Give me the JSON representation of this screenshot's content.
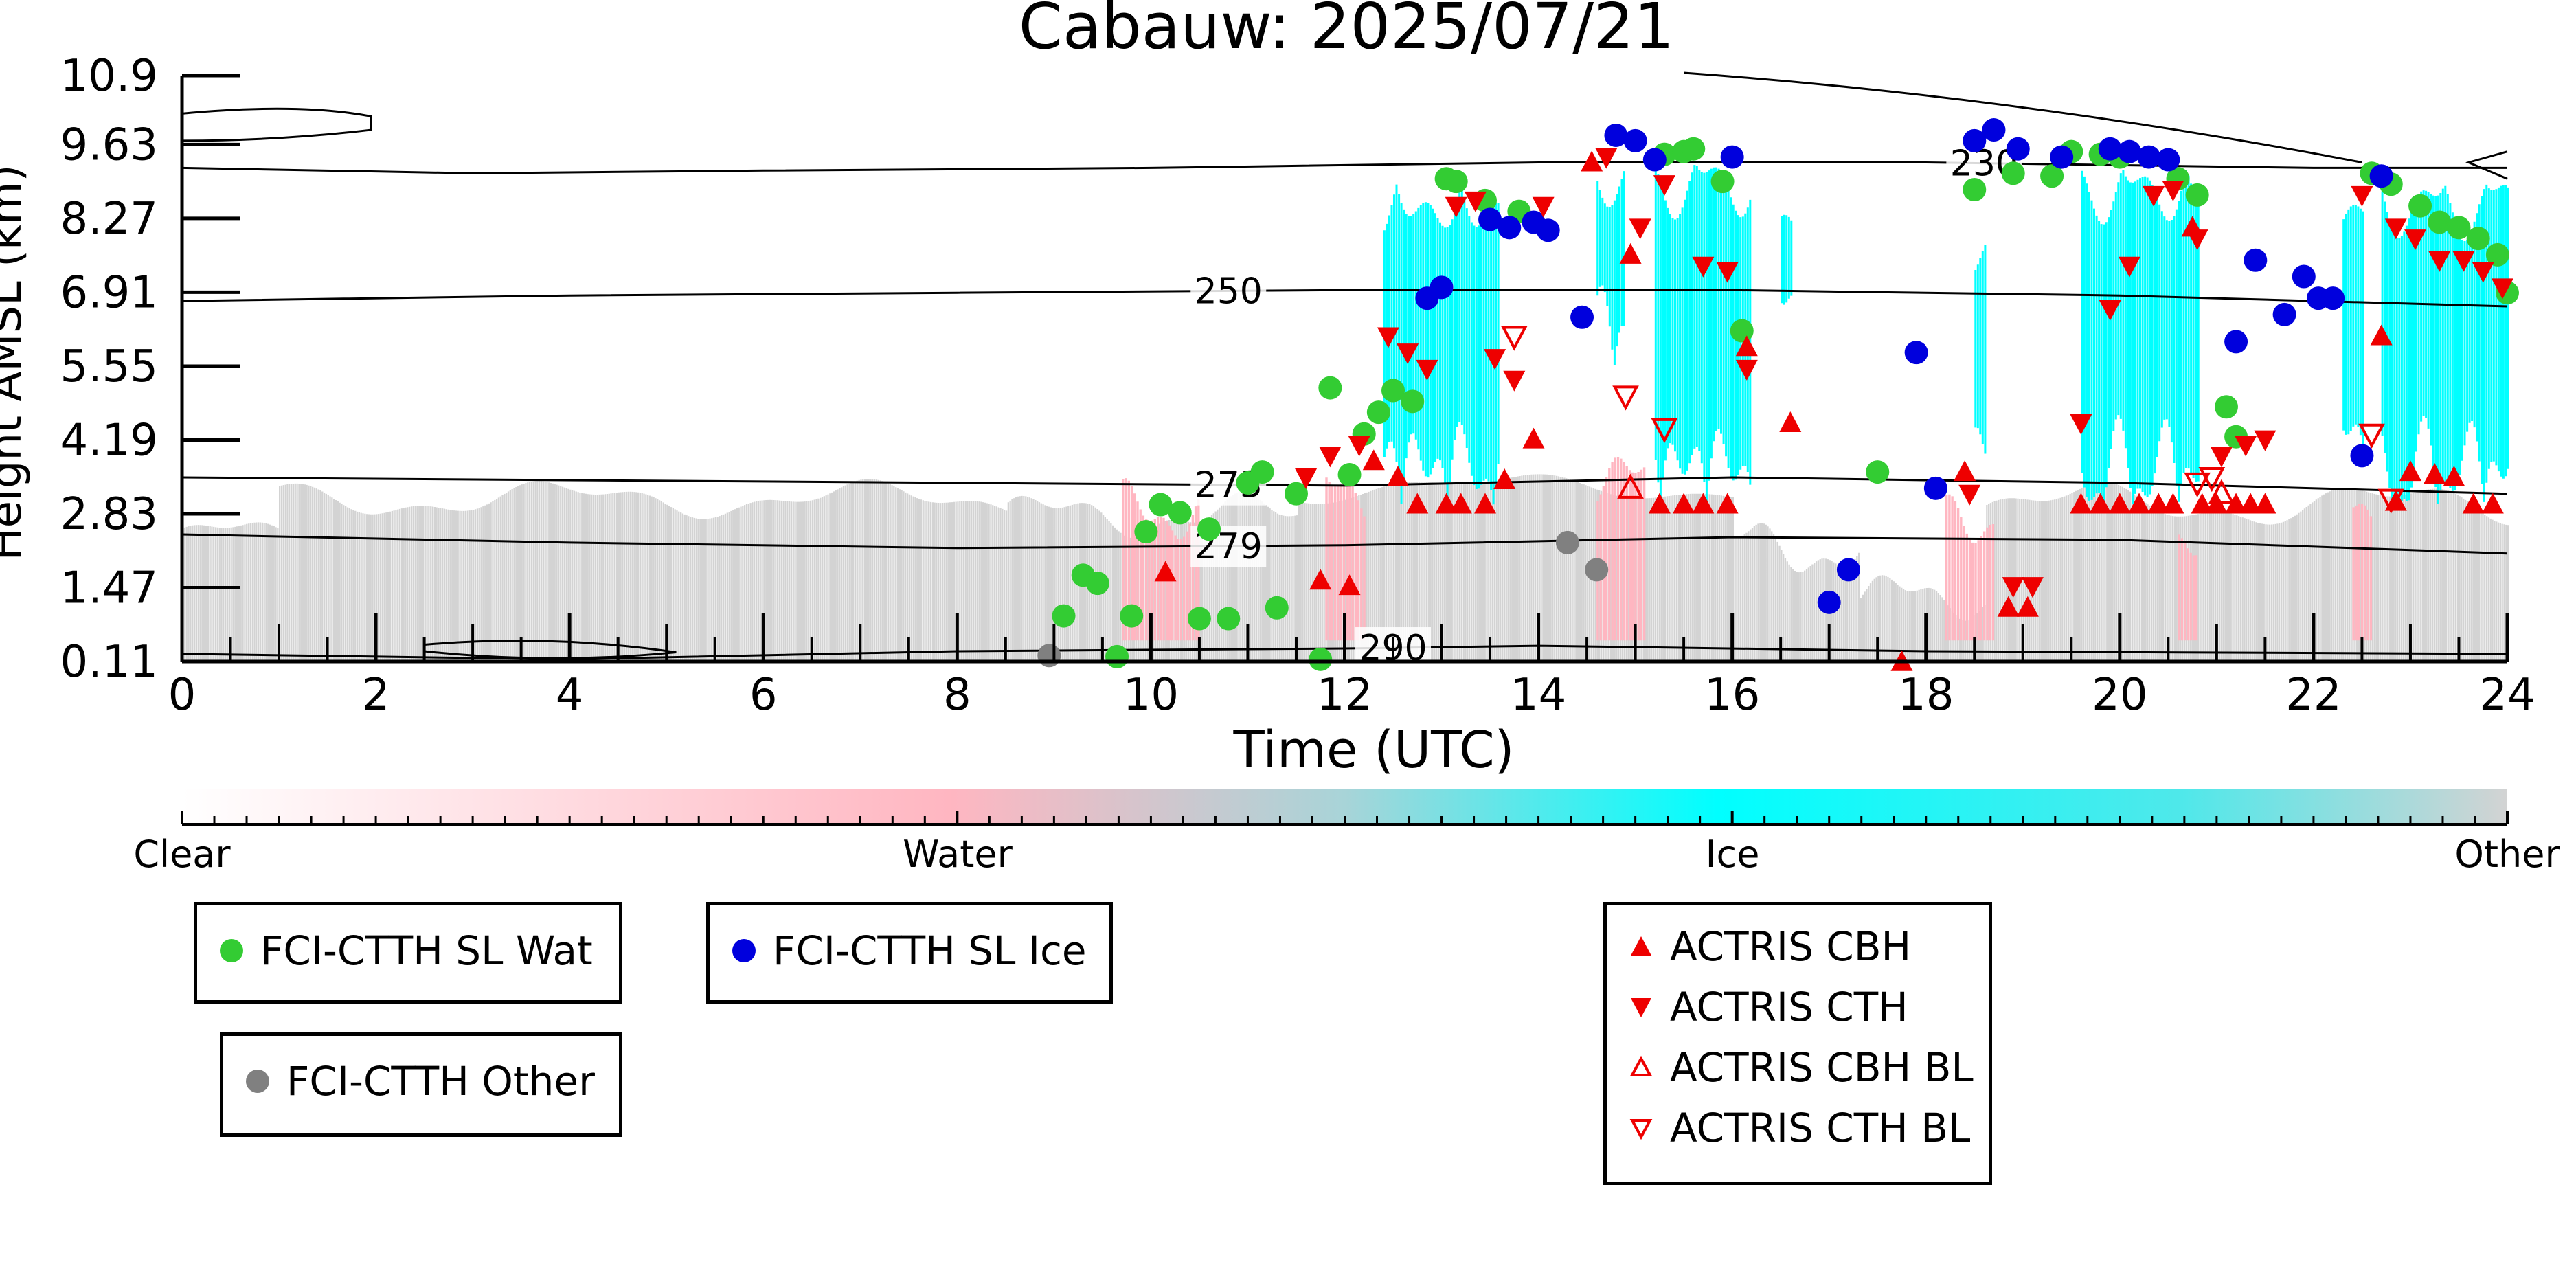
{
  "chart_data": {
    "type": "scatter",
    "title": "Cabauw: 2025/07/21",
    "xlabel": "Time (UTC)",
    "ylabel": "Height AMSL (km)",
    "xlim": [
      0,
      24
    ],
    "ylim": [
      0.11,
      10.9
    ],
    "xticks": [
      "0",
      "2",
      "4",
      "6",
      "8",
      "10",
      "12",
      "14",
      "16",
      "18",
      "20",
      "22",
      "24"
    ],
    "yticks": [
      "0.11",
      "1.47",
      "2.83",
      "4.19",
      "5.55",
      "6.91",
      "8.27",
      "9.63",
      "10.9"
    ],
    "colorbar": {
      "labels": [
        "Clear",
        "Water",
        "Ice",
        "Other"
      ],
      "colors": [
        "#ffffff",
        "#ffb6c1",
        "#00ffff",
        "#d3d3d3"
      ]
    },
    "contours": [
      {
        "label": "230",
        "label_x": 18.6,
        "points": [
          [
            0,
            9.2
          ],
          [
            3,
            9.1
          ],
          [
            6,
            9.15
          ],
          [
            10,
            9.2
          ],
          [
            14,
            9.3
          ],
          [
            18,
            9.3
          ],
          [
            22,
            9.2
          ],
          [
            24,
            9.2
          ]
        ]
      },
      {
        "label": "250",
        "label_x": 10.8,
        "points": [
          [
            0,
            6.75
          ],
          [
            4,
            6.85
          ],
          [
            8,
            6.9
          ],
          [
            12,
            6.95
          ],
          [
            16,
            6.95
          ],
          [
            20,
            6.85
          ],
          [
            24,
            6.65
          ]
        ]
      },
      {
        "label": "273",
        "label_x": 10.8,
        "points": [
          [
            0,
            3.5
          ],
          [
            4,
            3.45
          ],
          [
            8,
            3.4
          ],
          [
            12,
            3.35
          ],
          [
            16,
            3.5
          ],
          [
            20,
            3.4
          ],
          [
            24,
            3.2
          ]
        ]
      },
      {
        "label": "279",
        "label_x": 10.8,
        "points": [
          [
            0,
            2.45
          ],
          [
            4,
            2.3
          ],
          [
            8,
            2.2
          ],
          [
            12,
            2.25
          ],
          [
            16,
            2.4
          ],
          [
            20,
            2.35
          ],
          [
            24,
            2.1
          ]
        ]
      },
      {
        "label": "290",
        "label_x": 12.5,
        "points": [
          [
            0,
            0.25
          ],
          [
            4,
            0.15
          ],
          [
            8,
            0.3
          ],
          [
            12,
            0.35
          ],
          [
            14,
            0.4
          ],
          [
            18,
            0.3
          ],
          [
            24,
            0.25
          ]
        ]
      }
    ],
    "series": [
      {
        "name": "FCI-CTTH SL Wat",
        "marker": "circle",
        "color": "#33cc33",
        "x": [
          9.1,
          9.3,
          9.45,
          9.65,
          9.8,
          9.95,
          10.1,
          10.3,
          10.5,
          10.6,
          10.8,
          11.0,
          11.15,
          11.3,
          11.5,
          11.75,
          11.85,
          12.05,
          12.2,
          12.35,
          12.5,
          12.7,
          13.05,
          13.15,
          13.45,
          13.8,
          15.3,
          15.5,
          15.6,
          15.9,
          16.1,
          17.5,
          18.5,
          18.9,
          19.3,
          19.5,
          19.8,
          20.0,
          20.6,
          20.8,
          21.1,
          21.2,
          22.6,
          22.8,
          23.1,
          23.3,
          23.5,
          23.7,
          23.9,
          24.0
        ],
        "y": [
          0.95,
          1.7,
          1.55,
          0.2,
          0.95,
          2.5,
          3.0,
          2.85,
          0.9,
          2.55,
          0.9,
          3.4,
          3.6,
          1.1,
          3.2,
          0.15,
          5.15,
          3.55,
          4.3,
          4.7,
          5.1,
          4.9,
          9.0,
          8.95,
          8.6,
          8.4,
          9.45,
          9.5,
          9.55,
          8.95,
          6.2,
          3.6,
          8.8,
          9.1,
          9.05,
          9.5,
          9.45,
          9.4,
          9.0,
          8.7,
          4.8,
          4.25,
          9.1,
          8.9,
          8.5,
          8.2,
          8.1,
          7.9,
          7.6,
          6.9
        ]
      },
      {
        "name": "FCI-CTTH SL Ice",
        "marker": "circle",
        "color": "#0000dd",
        "x": [
          12.85,
          13.0,
          13.5,
          13.7,
          13.95,
          14.1,
          14.45,
          14.8,
          15.0,
          15.2,
          16.0,
          17.0,
          17.2,
          17.9,
          18.1,
          18.5,
          18.7,
          18.95,
          19.4,
          19.9,
          20.1,
          20.3,
          20.5,
          21.2,
          21.4,
          21.7,
          21.9,
          22.05,
          22.2,
          22.5,
          22.7
        ],
        "y": [
          6.8,
          7.0,
          8.25,
          8.1,
          8.2,
          8.05,
          6.45,
          9.8,
          9.7,
          9.35,
          9.4,
          1.2,
          1.8,
          5.8,
          3.3,
          9.7,
          9.9,
          9.55,
          9.4,
          9.55,
          9.5,
          9.4,
          9.35,
          6.0,
          7.5,
          6.5,
          7.2,
          6.8,
          6.8,
          3.9,
          9.05
        ]
      },
      {
        "name": "FCI-CTTH Other",
        "marker": "circle",
        "color": "#808080",
        "x": [
          8.95,
          14.3,
          14.6
        ],
        "y": [
          0.22,
          2.3,
          1.8
        ]
      },
      {
        "name": "ACTRIS CBH",
        "marker": "triangle-up",
        "color": "#ee0000",
        "filled": true,
        "x": [
          10.15,
          11.75,
          12.05,
          12.3,
          12.55,
          12.75,
          13.05,
          13.2,
          13.45,
          13.65,
          13.95,
          14.55,
          14.95,
          15.25,
          15.5,
          15.7,
          15.95,
          16.15,
          16.6,
          17.75,
          18.4,
          18.85,
          19.05,
          19.6,
          19.8,
          20.0,
          20.2,
          20.4,
          20.55,
          20.75,
          20.85,
          21.0,
          21.2,
          21.35,
          21.5,
          22.7,
          22.85,
          23.0,
          23.25,
          23.45,
          23.65,
          23.85
        ],
        "y": [
          1.75,
          1.6,
          1.5,
          3.8,
          3.5,
          3.0,
          3.0,
          3.0,
          3.0,
          3.45,
          4.2,
          9.3,
          7.6,
          3.0,
          3.0,
          3.0,
          3.0,
          5.9,
          4.5,
          0.1,
          3.6,
          1.1,
          1.1,
          3.0,
          3.0,
          3.0,
          3.0,
          3.0,
          3.0,
          8.1,
          3.0,
          3.0,
          3.0,
          3.0,
          3.0,
          6.1,
          3.05,
          3.6,
          3.55,
          3.5,
          3.0,
          3.0
        ]
      },
      {
        "name": "ACTRIS CTH",
        "marker": "triangle-down",
        "color": "#ee0000",
        "filled": true,
        "x": [
          11.6,
          11.85,
          12.15,
          12.45,
          12.65,
          12.85,
          13.15,
          13.35,
          13.55,
          13.75,
          14.05,
          14.7,
          15.05,
          15.3,
          15.7,
          15.95,
          16.15,
          18.45,
          18.9,
          19.1,
          19.6,
          19.9,
          20.1,
          20.35,
          20.55,
          20.8,
          21.05,
          21.3,
          21.5,
          22.5,
          22.85,
          23.05,
          23.3,
          23.55,
          23.75,
          23.95
        ],
        "y": [
          3.5,
          3.9,
          4.1,
          6.1,
          5.8,
          5.5,
          8.5,
          8.6,
          5.7,
          5.3,
          8.5,
          9.4,
          8.1,
          8.9,
          7.4,
          7.3,
          5.5,
          3.2,
          1.5,
          1.5,
          4.5,
          6.6,
          7.4,
          8.7,
          8.8,
          7.9,
          3.9,
          4.1,
          4.2,
          8.7,
          8.1,
          7.9,
          7.5,
          7.5,
          7.3,
          7.0
        ]
      },
      {
        "name": "ACTRIS CBH BL",
        "marker": "triangle-up",
        "color": "#ee0000",
        "filled": false,
        "x": [
          14.95,
          21.05
        ],
        "y": [
          3.3,
          3.2
        ]
      },
      {
        "name": "ACTRIS CTH BL",
        "marker": "triangle-down",
        "color": "#ee0000",
        "filled": false,
        "x": [
          13.75,
          14.9,
          15.3,
          20.8,
          20.95,
          22.6,
          22.8
        ],
        "y": [
          6.1,
          5.0,
          4.4,
          3.4,
          3.5,
          4.3,
          3.1
        ]
      }
    ]
  }
}
